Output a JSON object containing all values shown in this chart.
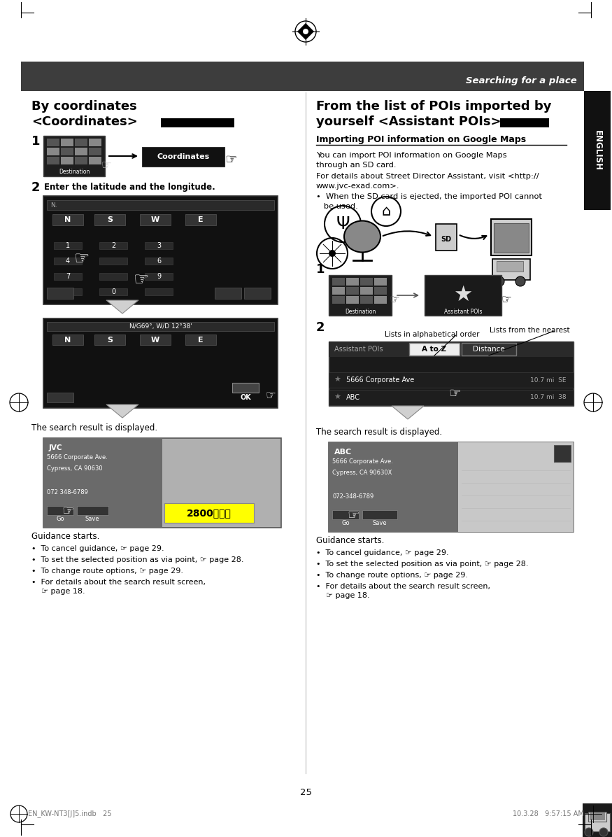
{
  "page_bg": "#ffffff",
  "header_bg": "#3d3d3d",
  "header_text": "Searching for a place",
  "header_text_color": "#ffffff",
  "tab_bg": "#111111",
  "tab_text": "ENGLISH",
  "tab_text_color": "#ffffff",
  "yellow_box_text": "2800とかエ",
  "lists_alphabetical": "Lists in alphabetical order",
  "lists_nearest": "Lists from the nearest",
  "page_number": "25",
  "footer_left": "EN_KW-NT3[J]5.indb   25",
  "footer_right": "10.3.28   9:57:15 AM",
  "divider_color": "#cccccc",
  "bullet_points_left": [
    "•  To cancel guidance, ☞ page 29.",
    "•  To set the selected position as via point, ☞ page 28.",
    "•  To change route options, ☞ page 29.",
    "•  For details about the search result screen,\n    ☞ page 18."
  ],
  "bullet_points_right": [
    "•  To cancel guidance, ☞ page 29.",
    "•  To set the selected position as via point, ☞ page 28.",
    "•  To change route options, ☞ page 29.",
    "•  For details about the search result screen,\n    ☞ page 18."
  ]
}
